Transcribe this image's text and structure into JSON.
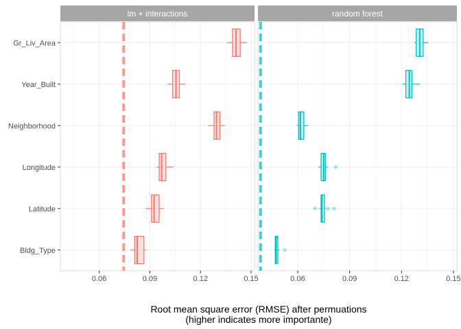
{
  "chart_data": {
    "type": "boxplot",
    "title": "",
    "xlabel_line1": "Root mean square error (RMSE) after permuations",
    "xlabel_line2": "(higher indicates more importante)",
    "ylabel": "",
    "xlim": [
      0.037,
      0.152
    ],
    "x_ticks": [
      0.06,
      0.09,
      0.12,
      0.15
    ],
    "x_tick_labels": [
      "0.06",
      "0.09",
      "0.12",
      "0.15"
    ],
    "categories": [
      "Gr_Liv_Area",
      "Year_Built",
      "Neighborhood",
      "Longitude",
      "Latitude",
      "Bldg_Type"
    ],
    "grid": true,
    "legend": "none",
    "panels": [
      {
        "name": "lm + interactions",
        "color": "#f8766d",
        "baseline": 0.0745,
        "boxes": [
          {
            "variable": "Gr_Liv_Area",
            "whisker_low": 0.1355,
            "q1": 0.139,
            "median": 0.141,
            "q3": 0.1435,
            "whisker_high": 0.1475,
            "outliers": []
          },
          {
            "variable": "Year_Built",
            "whisker_low": 0.1005,
            "q1": 0.1035,
            "median": 0.1055,
            "q3": 0.1075,
            "whisker_high": 0.111,
            "outliers": []
          },
          {
            "variable": "Neighborhood",
            "whisker_low": 0.1245,
            "q1": 0.128,
            "median": 0.1295,
            "q3": 0.1315,
            "whisker_high": 0.1345,
            "outliers": []
          },
          {
            "variable": "Longitude",
            "whisker_low": 0.094,
            "q1": 0.0955,
            "median": 0.097,
            "q3": 0.0995,
            "whisker_high": 0.104,
            "outliers": []
          },
          {
            "variable": "Latitude",
            "whisker_low": 0.0875,
            "q1": 0.091,
            "median": 0.0925,
            "q3": 0.0955,
            "whisker_high": 0.098,
            "outliers": []
          },
          {
            "variable": "Bldg_Type",
            "whisker_low": 0.0785,
            "q1": 0.081,
            "median": 0.0825,
            "q3": 0.0865,
            "whisker_high": 0.088,
            "outliers": []
          }
        ]
      },
      {
        "name": "random forest",
        "color": "#00bfc4",
        "baseline": 0.0385,
        "boxes": [
          {
            "variable": "Gr_Liv_Area",
            "whisker_low": 0.1275,
            "q1": 0.1285,
            "median": 0.1305,
            "q3": 0.1325,
            "whisker_high": 0.1355,
            "outliers": []
          },
          {
            "variable": "Year_Built",
            "whisker_low": 0.1205,
            "q1": 0.1225,
            "median": 0.1245,
            "q3": 0.126,
            "whisker_high": 0.1305,
            "outliers": []
          },
          {
            "variable": "Neighborhood",
            "whisker_low": 0.0595,
            "q1": 0.0605,
            "median": 0.0615,
            "q3": 0.0635,
            "whisker_high": 0.066,
            "outliers": []
          },
          {
            "variable": "Longitude",
            "whisker_low": 0.072,
            "q1": 0.0735,
            "median": 0.075,
            "q3": 0.076,
            "whisker_high": 0.0775,
            "outliers": [
              0.082
            ]
          },
          {
            "variable": "Latitude",
            "whisker_low": 0.0725,
            "q1": 0.0735,
            "median": 0.074,
            "q3": 0.0755,
            "whisker_high": 0.076,
            "outliers": [
              0.07,
              0.0775,
              0.081
            ]
          },
          {
            "variable": "Bldg_Type",
            "whisker_low": 0.0465,
            "q1": 0.047,
            "median": 0.0475,
            "q3": 0.0485,
            "whisker_high": 0.0495,
            "outliers": [
              0.0525
            ]
          }
        ]
      }
    ]
  }
}
